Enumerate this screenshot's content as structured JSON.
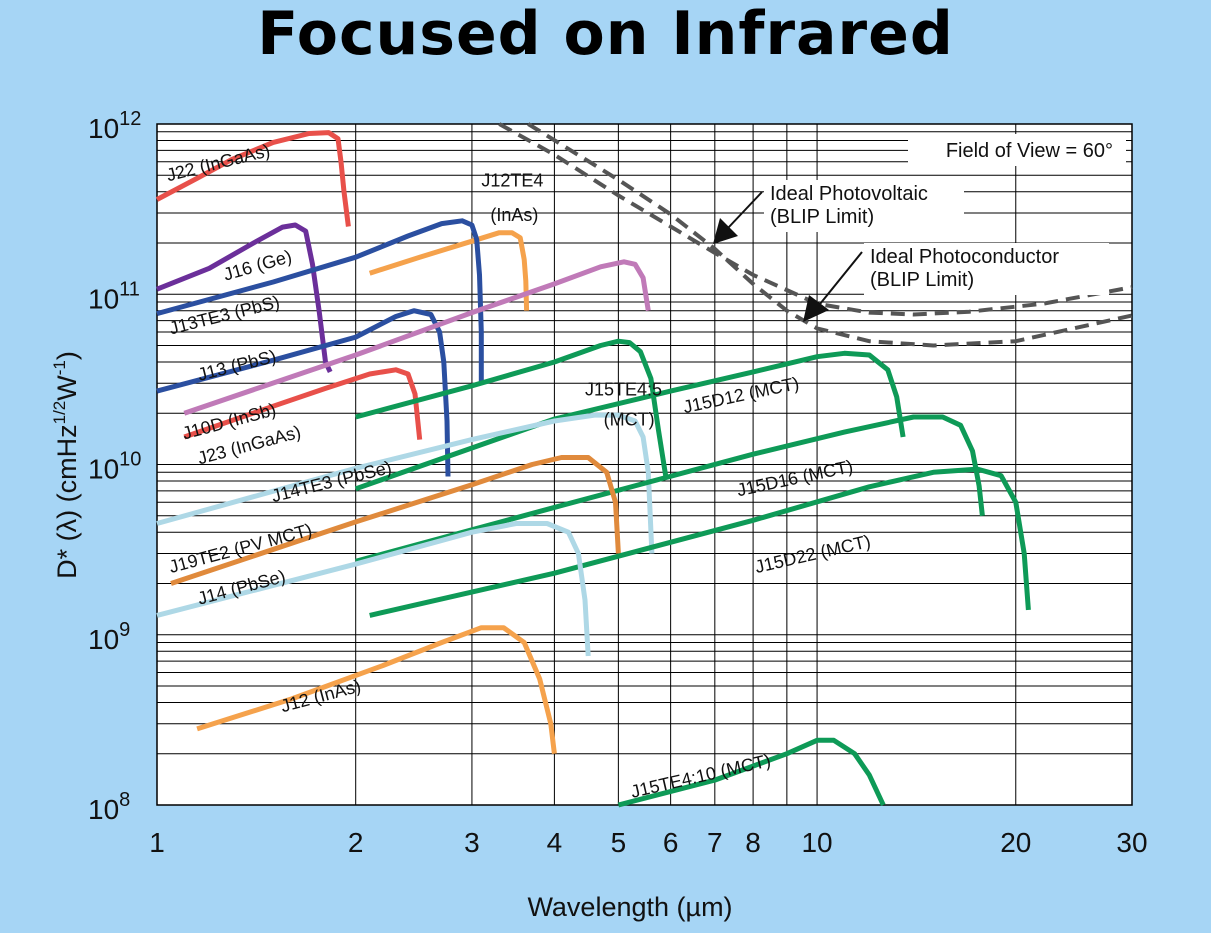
{
  "chart_data": {
    "type": "line",
    "title": "Focused on Infrared",
    "xlabel": "Wavelength (µm)",
    "ylabel_main": "D* (λ)  (cmHz",
    "ylabel_sup1": "1/2",
    "ylabel_mid": "W",
    "ylabel_sup2": "-1",
    "ylabel_end": ")",
    "xscale": "log",
    "yscale": "log",
    "xlim": [
      1,
      30
    ],
    "ylim": [
      100000000.0,
      1000000000000.0
    ],
    "grid": true,
    "x_tick_labels": [
      {
        "value": 1,
        "label": "1"
      },
      {
        "value": 2,
        "label": "2"
      },
      {
        "value": 3,
        "label": "3"
      },
      {
        "value": 4,
        "label": "4"
      },
      {
        "value": 5,
        "label": "5"
      },
      {
        "value": 6,
        "label": "6"
      },
      {
        "value": 7,
        "label": "7"
      },
      {
        "value": 8,
        "label": "8"
      },
      {
        "value": 10,
        "label": "10"
      },
      {
        "value": 20,
        "label": "20"
      },
      {
        "value": 30,
        "label": "30"
      }
    ],
    "y_tick_labels": [
      {
        "value": 1000000000000.0,
        "base": "10",
        "exp": "12"
      },
      {
        "value": 100000000000.0,
        "base": "10",
        "exp": "11"
      },
      {
        "value": 10000000000.0,
        "base": "10",
        "exp": "10"
      },
      {
        "value": 1000000000.0,
        "base": "10",
        "exp": "9"
      },
      {
        "value": 100000000.0,
        "base": "10",
        "exp": "8"
      }
    ],
    "field_of_view": "Field of View = 60°",
    "series": [
      {
        "name": "J22 (InGaAs)",
        "color": "#e8504a",
        "points": [
          [
            1.0,
            360000000000.0
          ],
          [
            1.15,
            480000000000.0
          ],
          [
            1.3,
            620000000000.0
          ],
          [
            1.5,
            780000000000.0
          ],
          [
            1.7,
            880000000000.0
          ],
          [
            1.82,
            890000000000.0
          ],
          [
            1.88,
            820000000000.0
          ],
          [
            1.9,
            600000000000.0
          ],
          [
            1.92,
            400000000000.0
          ],
          [
            1.95,
            250000000000.0
          ]
        ]
      },
      {
        "name": "J12TE4 (InAs)",
        "color": "#f5a24c",
        "points": [
          [
            2.1,
            133000000000.0
          ],
          [
            2.5,
            165000000000.0
          ],
          [
            3.0,
            205000000000.0
          ],
          [
            3.3,
            230000000000.0
          ],
          [
            3.45,
            230000000000.0
          ],
          [
            3.55,
            215000000000.0
          ],
          [
            3.6,
            160000000000.0
          ],
          [
            3.62,
            120000000000.0
          ],
          [
            3.63,
            80000000000.0
          ]
        ]
      },
      {
        "name": "J16 (Ge)",
        "color": "#6b2f9a",
        "points": [
          [
            1.0,
            107000000000.0
          ],
          [
            1.2,
            142000000000.0
          ],
          [
            1.4,
            200000000000.0
          ],
          [
            1.55,
            248000000000.0
          ],
          [
            1.62,
            255000000000.0
          ],
          [
            1.68,
            235000000000.0
          ],
          [
            1.72,
            150000000000.0
          ],
          [
            1.76,
            80000000000.0
          ],
          [
            1.8,
            40000000000.0
          ],
          [
            1.83,
            35000000000.0
          ]
        ]
      },
      {
        "name": "J13TE3 (PbS)",
        "color": "#2b4fa0",
        "points": [
          [
            1.0,
            77000000000.0
          ],
          [
            1.5,
            118000000000.0
          ],
          [
            2.0,
            165000000000.0
          ],
          [
            2.4,
            220000000000.0
          ],
          [
            2.7,
            260000000000.0
          ],
          [
            2.9,
            270000000000.0
          ],
          [
            3.0,
            255000000000.0
          ],
          [
            3.05,
            210000000000.0
          ],
          [
            3.08,
            130000000000.0
          ],
          [
            3.1,
            60000000000.0
          ],
          [
            3.1,
            30000000000.0
          ]
        ]
      },
      {
        "name": "J13 (PbS)",
        "color": "#2b4fa0",
        "points": [
          [
            1.0,
            27000000000.0
          ],
          [
            1.5,
            41000000000.0
          ],
          [
            2.0,
            56000000000.0
          ],
          [
            2.3,
            74000000000.0
          ],
          [
            2.45,
            80000000000.0
          ],
          [
            2.6,
            76000000000.0
          ],
          [
            2.68,
            60000000000.0
          ],
          [
            2.72,
            40000000000.0
          ],
          [
            2.75,
            18000000000.0
          ],
          [
            2.76,
            8500000000.0
          ]
        ]
      },
      {
        "name": "J10D (InSb)",
        "color": "#c07ab8",
        "points": [
          [
            1.1,
            20000000000.0
          ],
          [
            2.0,
            44000000000.0
          ],
          [
            3.0,
            78000000000.0
          ],
          [
            4.0,
            115000000000.0
          ],
          [
            4.7,
            145000000000.0
          ],
          [
            5.1,
            155000000000.0
          ],
          [
            5.3,
            150000000000.0
          ],
          [
            5.45,
            125000000000.0
          ],
          [
            5.55,
            80000000000.0
          ]
        ]
      },
      {
        "name": "J23 (InGaAs)",
        "color": "#e8504a",
        "points": [
          [
            1.1,
            14500000000.0
          ],
          [
            1.5,
            22000000000.0
          ],
          [
            1.8,
            28000000000.0
          ],
          [
            2.1,
            34000000000.0
          ],
          [
            2.3,
            36000000000.0
          ],
          [
            2.4,
            34000000000.0
          ],
          [
            2.46,
            26000000000.0
          ],
          [
            2.5,
            14000000000.0
          ]
        ]
      },
      {
        "name": "J15TE4:5 (MCT)",
        "color": "#0e9a57",
        "points": [
          [
            2.0,
            19000000000.0
          ],
          [
            3.0,
            29000000000.0
          ],
          [
            4.0,
            40000000000.0
          ],
          [
            4.7,
            50000000000.0
          ],
          [
            5.0,
            53000000000.0
          ],
          [
            5.2,
            52000000000.0
          ],
          [
            5.4,
            46000000000.0
          ],
          [
            5.6,
            32000000000.0
          ],
          [
            5.75,
            16000000000.0
          ],
          [
            5.9,
            8500000000.0
          ]
        ]
      },
      {
        "name": "J15D12 (MCT)",
        "color": "#0e9a57",
        "points": [
          [
            2.0,
            7200000000.0
          ],
          [
            3.0,
            12500000000.0
          ],
          [
            4.0,
            18500000000.0
          ],
          [
            6.0,
            27000000000.0
          ],
          [
            8.0,
            35000000000.0
          ],
          [
            10.0,
            43000000000.0
          ],
          [
            11.0,
            45000000000.0
          ],
          [
            12.0,
            44000000000.0
          ],
          [
            12.8,
            36000000000.0
          ],
          [
            13.2,
            25000000000.0
          ],
          [
            13.5,
            14500000000.0
          ]
        ]
      },
      {
        "name": "J14TE3 (PbSe)",
        "color": "#aed8e6",
        "points": [
          [
            1.0,
            4500000000.0
          ],
          [
            2.0,
            9500000000.0
          ],
          [
            3.0,
            14000000000.0
          ],
          [
            4.0,
            18000000000.0
          ],
          [
            4.6,
            19500000000.0
          ],
          [
            5.0,
            19500000000.0
          ],
          [
            5.3,
            18000000000.0
          ],
          [
            5.45,
            14500000000.0
          ],
          [
            5.55,
            9000000000.0
          ],
          [
            5.62,
            3000000000.0
          ]
        ]
      },
      {
        "name": "J15D16 (MCT)",
        "color": "#0e9a57",
        "points": [
          [
            2.0,
            2700000000.0
          ],
          [
            4.0,
            5600000000.0
          ],
          [
            8.0,
            11500000000.0
          ],
          [
            11.0,
            15500000000.0
          ],
          [
            14.0,
            19000000000.0
          ],
          [
            15.5,
            19000000000.0
          ],
          [
            16.5,
            17000000000.0
          ],
          [
            17.2,
            12000000000.0
          ],
          [
            17.6,
            7500000000.0
          ],
          [
            17.8,
            5000000000.0
          ]
        ]
      },
      {
        "name": "J19TE2 (PV MCT)",
        "color": "#e08a3c",
        "points": [
          [
            1.05,
            2000000000.0
          ],
          [
            2.0,
            4600000000.0
          ],
          [
            3.0,
            7600000000.0
          ],
          [
            3.7,
            10000000000.0
          ],
          [
            4.1,
            11000000000.0
          ],
          [
            4.5,
            11000000000.0
          ],
          [
            4.8,
            9000000000.0
          ],
          [
            4.95,
            6000000000.0
          ],
          [
            5.0,
            3000000000.0
          ]
        ]
      },
      {
        "name": "J15D22 (MCT)",
        "color": "#0e9a57",
        "points": [
          [
            2.1,
            1300000000.0
          ],
          [
            4.0,
            2300000000.0
          ],
          [
            8.0,
            4700000000.0
          ],
          [
            12.0,
            7400000000.0
          ],
          [
            15.0,
            9000000000.0
          ],
          [
            17.5,
            9400000000.0
          ],
          [
            19.0,
            8600000000.0
          ],
          [
            20.0,
            6000000000.0
          ],
          [
            20.6,
            3000000000.0
          ],
          [
            20.9,
            1400000000.0
          ]
        ]
      },
      {
        "name": "J14 (PbSe)",
        "color": "#aed8e6",
        "points": [
          [
            1.0,
            1300000000.0
          ],
          [
            2.0,
            2600000000.0
          ],
          [
            3.0,
            4000000000.0
          ],
          [
            3.5,
            4500000000.0
          ],
          [
            3.9,
            4500000000.0
          ],
          [
            4.2,
            4000000000.0
          ],
          [
            4.35,
            3000000000.0
          ],
          [
            4.45,
            1600000000.0
          ],
          [
            4.5,
            750000000.0
          ]
        ]
      },
      {
        "name": "J12 (InAs)",
        "color": "#f5a24c",
        "points": [
          [
            1.15,
            280000000.0
          ],
          [
            1.6,
            420000000.0
          ],
          [
            2.2,
            660000000.0
          ],
          [
            2.7,
            900000000.0
          ],
          [
            3.1,
            1100000000.0
          ],
          [
            3.35,
            1100000000.0
          ],
          [
            3.6,
            900000000.0
          ],
          [
            3.8,
            550000000.0
          ],
          [
            3.95,
            300000000.0
          ],
          [
            4.0,
            200000000.0
          ]
        ]
      },
      {
        "name": "J15TE4:10 (MCT)",
        "color": "#0e9a57",
        "points": [
          [
            5.0,
            100000000.0
          ],
          [
            7.0,
            140000000.0
          ],
          [
            9.0,
            200000000.0
          ],
          [
            10.0,
            240000000.0
          ],
          [
            10.6,
            240000000.0
          ],
          [
            11.4,
            200000000.0
          ],
          [
            12.0,
            150000000.0
          ],
          [
            12.6,
            100000000.0
          ]
        ]
      }
    ],
    "reference_curves": [
      {
        "name": "Ideal Photovoltaic (BLIP Limit)",
        "line1": "Ideal Photovoltaic",
        "line2": "(BLIP Limit)",
        "color": "#555555",
        "style": "dashed",
        "points": [
          [
            3.3,
            1000000000000.0
          ],
          [
            4,
            660000000000.0
          ],
          [
            5,
            380000000000.0
          ],
          [
            6,
            250000000000.0
          ],
          [
            7,
            175000000000.0
          ],
          [
            8,
            130000000000.0
          ],
          [
            10,
            88000000000.0
          ],
          [
            12,
            78000000000.0
          ],
          [
            14,
            76000000000.0
          ],
          [
            17,
            79000000000.0
          ],
          [
            22,
            88000000000.0
          ],
          [
            30,
            110000000000.0
          ]
        ]
      },
      {
        "name": "Ideal Photoconductor (BLIP Limit)",
        "line1": "Ideal Photoconductor",
        "line2": "(BLIP Limit)",
        "color": "#555555",
        "style": "dashed",
        "points": [
          [
            3.65,
            1000000000000.0
          ],
          [
            5,
            470000000000.0
          ],
          [
            6,
            295000000000.0
          ],
          [
            7,
            185000000000.0
          ],
          [
            8,
            115000000000.0
          ],
          [
            9,
            80000000000.0
          ],
          [
            10,
            63000000000.0
          ],
          [
            12,
            53000000000.0
          ],
          [
            15,
            50000000000.0
          ],
          [
            20,
            53000000000.0
          ],
          [
            30,
            75000000000.0
          ]
        ]
      }
    ],
    "annotations": [
      {
        "text": "J22 (InGaAs)",
        "x": 1.04,
        "y": 460000000000.0,
        "angle": -14
      },
      {
        "text": "J12TE4",
        "x": 3.1,
        "y": 430000000000.0,
        "angle": 0
      },
      {
        "text": "(InAs)",
        "x": 3.2,
        "y": 270000000000.0,
        "angle": 0
      },
      {
        "text": "J16 (Ge)",
        "x": 1.27,
        "y": 120000000000.0,
        "angle": -16
      },
      {
        "text": "J13TE3 (PbS)",
        "x": 1.05,
        "y": 58000000000.0,
        "angle": -14
      },
      {
        "text": "J13 (PbS)",
        "x": 1.16,
        "y": 31000000000.0,
        "angle": -14
      },
      {
        "text": "J10D (InSb)",
        "x": 1.1,
        "y": 14000000000.0,
        "angle": -15
      },
      {
        "text": "J23 (InGaAs)",
        "x": 1.16,
        "y": 10000000000.0,
        "angle": -15
      },
      {
        "text": "J15TE4:5",
        "x": 4.45,
        "y": 25500000000.0,
        "angle": 0
      },
      {
        "text": "(MCT)",
        "x": 4.75,
        "y": 17000000000.0,
        "angle": 0
      },
      {
        "text": "J15D12 (MCT)",
        "x": 6.3,
        "y": 20000000000.0,
        "angle": -12
      },
      {
        "text": "J14TE3 (PbSe)",
        "x": 1.5,
        "y": 6000000000.0,
        "angle": -14
      },
      {
        "text": "J15D16 (MCT)",
        "x": 7.6,
        "y": 6500000000.0,
        "angle": -12
      },
      {
        "text": "J19TE2 (PV MCT)",
        "x": 1.05,
        "y": 2300000000.0,
        "angle": -15
      },
      {
        "text": "J15D22 (MCT)",
        "x": 8.1,
        "y": 2300000000.0,
        "angle": -13
      },
      {
        "text": "J14 (PbSe)",
        "x": 1.16,
        "y": 1500000000.0,
        "angle": -15
      },
      {
        "text": "J12 (InAs)",
        "x": 1.55,
        "y": 350000000.0,
        "angle": -15
      },
      {
        "text": "J15TE4:10 (MCT)",
        "x": 5.25,
        "y": 110000000.0,
        "angle": -13
      }
    ]
  }
}
